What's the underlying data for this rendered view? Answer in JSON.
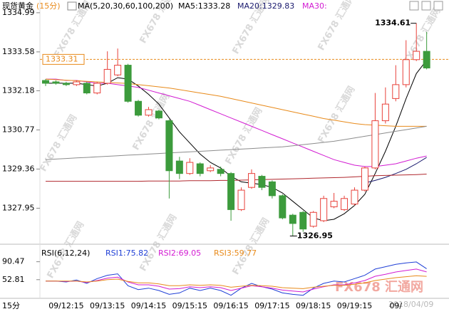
{
  "header": {
    "title": "现货黄金",
    "period": "(15分)",
    "ma_label": "MA(5,20,30,60,100,200)",
    "ma5": "MA5:1333.28",
    "ma20": "MA20:1329.83",
    "ma30": "MA30:"
  },
  "rsi_header": {
    "label": "RSI(6,12,24)",
    "rsi1": "RSI1:75.82",
    "rsi2": "RSI2:69.05",
    "rsi3": "RSI3:59.77"
  },
  "footer": {
    "period": "15分",
    "date": "2018/04/09",
    "watermark": "FX678 汇通网"
  },
  "chart_data": [
    {
      "type": "candlestick",
      "up_color": "#e8413a",
      "down_color": "#3c9b3c",
      "categories": [
        null,
        null,
        "09/12:15",
        null,
        null,
        null,
        "09/13:15",
        null,
        null,
        null,
        "09/14:15",
        null,
        null,
        null,
        "09/15:15",
        null,
        null,
        null,
        "09/16:15",
        null,
        null,
        null,
        "09/17:15",
        null,
        null,
        null,
        "09/18:15",
        null,
        null,
        null,
        "09/19:15",
        null,
        null,
        null,
        "09/",
        null,
        null,
        null
      ],
      "open": [
        1332.55,
        1332.5,
        1332.45,
        1332.4,
        1332.45,
        1332.1,
        1332.45,
        1332.75,
        1333.1,
        1331.8,
        1331.3,
        1331.45,
        1331.1,
        1329.65,
        1329.2,
        1329.55,
        1329.3,
        1329.35,
        1329.2,
        1327.9,
        1328.7,
        1329.1,
        1328.9,
        1328.4,
        1327.7,
        1327.8,
        1327.3,
        1327.5,
        1328.0,
        1327.9,
        1328.1,
        1328.6,
        1329.4,
        1331.1,
        1331.9,
        1332.4,
        1333.3,
        1333.6
      ],
      "close": [
        1332.45,
        1332.45,
        1332.4,
        1332.5,
        1332.1,
        1332.45,
        1332.95,
        1333.1,
        1331.8,
        1331.3,
        1331.5,
        1331.2,
        1329.3,
        1329.2,
        1329.6,
        1329.2,
        1329.4,
        1329.2,
        1327.9,
        1328.6,
        1329.2,
        1328.7,
        1328.4,
        1327.6,
        1327.4,
        1327.2,
        1327.8,
        1328.3,
        1328.2,
        1328.3,
        1328.6,
        1329.4,
        1331.1,
        1331.7,
        1332.4,
        1333.3,
        1333.6,
        1333.0
      ],
      "high": [
        1332.6,
        1332.55,
        1332.5,
        1332.55,
        1332.5,
        1332.5,
        1333.6,
        1333.7,
        1333.15,
        1331.85,
        1331.6,
        1331.5,
        1331.15,
        1329.8,
        1329.75,
        1329.6,
        1329.5,
        1329.45,
        1329.25,
        1328.7,
        1329.35,
        1329.15,
        1328.95,
        1328.45,
        1327.75,
        1327.85,
        1327.85,
        1328.4,
        1328.5,
        1328.4,
        1328.7,
        1329.45,
        1332.1,
        1332.3,
        1333.1,
        1334.0,
        1334.61,
        1334.3
      ],
      "low": [
        1332.35,
        1332.4,
        1332.35,
        1332.35,
        1332.05,
        1332.05,
        1332.4,
        1332.7,
        1331.75,
        1331.25,
        1331.25,
        1331.15,
        1328.3,
        1329.0,
        1329.15,
        1329.1,
        1329.25,
        1329.1,
        1327.5,
        1327.85,
        1328.65,
        1328.6,
        1328.3,
        1327.55,
        1326.95,
        1327.1,
        1327.25,
        1327.45,
        1327.95,
        1327.85,
        1328.05,
        1328.55,
        1329.35,
        1331.0,
        1331.8,
        1332.3,
        1333.25,
        1332.95
      ],
      "lines": [
        {
          "color": "#000000",
          "values": [
            1332.45,
            1332.45,
            1332.45,
            1332.45,
            1332.4,
            1332.35,
            1332.45,
            1332.65,
            1332.6,
            1332.35,
            1332.05,
            1331.7,
            1331.2,
            1330.7,
            1330.3,
            1329.9,
            1329.6,
            1329.4,
            1329.1,
            1328.9,
            1328.85,
            1328.8,
            1328.7,
            1328.5,
            1328.2,
            1327.9,
            1327.6,
            1327.5,
            1327.55,
            1327.75,
            1328.05,
            1328.45,
            1329.2,
            1330.0,
            1330.9,
            1331.9,
            1332.8,
            1333.28
          ]
        },
        {
          "color": "#d21bd2",
          "values": [
            1332.6,
            1332.6,
            1332.55,
            1332.55,
            1332.5,
            1332.45,
            1332.45,
            1332.4,
            1332.35,
            1332.3,
            1332.2,
            1332.1,
            1332.0,
            1331.9,
            1331.8,
            1331.65,
            1331.5,
            1331.35,
            1331.2,
            1331.05,
            1330.9,
            1330.75,
            1330.6,
            1330.45,
            1330.3,
            1330.15,
            1330.0,
            1329.85,
            1329.7,
            1329.6,
            1329.5,
            1329.45,
            1329.45,
            1329.5,
            1329.55,
            1329.65,
            1329.75,
            1329.83
          ]
        },
        {
          "color": "#e88a1a",
          "values": [
            1332.6,
            1332.58,
            1332.56,
            1332.54,
            1332.52,
            1332.5,
            1332.48,
            1332.46,
            1332.44,
            1332.4,
            1332.36,
            1332.32,
            1332.28,
            1332.22,
            1332.16,
            1332.1,
            1332.04,
            1331.98,
            1331.9,
            1331.82,
            1331.74,
            1331.66,
            1331.58,
            1331.5,
            1331.42,
            1331.34,
            1331.26,
            1331.18,
            1331.12,
            1331.06,
            1331.0,
            1330.96,
            1330.94,
            1330.92,
            1330.9,
            1330.9,
            1330.9,
            1330.9
          ]
        },
        {
          "color": "#8c8c8c",
          "values": [
            1329.7,
            1329.72,
            1329.74,
            1329.76,
            1329.78,
            1329.8,
            1329.82,
            1329.84,
            1329.86,
            1329.88,
            1329.9,
            1329.92,
            1329.94,
            1329.96,
            1329.98,
            1330.0,
            1330.02,
            1330.04,
            1330.06,
            1330.08,
            1330.1,
            1330.12,
            1330.14,
            1330.16,
            1330.2,
            1330.24,
            1330.28,
            1330.32,
            1330.36,
            1330.42,
            1330.48,
            1330.54,
            1330.6,
            1330.66,
            1330.72,
            1330.78,
            1330.84,
            1330.9
          ]
        },
        {
          "color": "#1a1a6e",
          "values": [
            null,
            null,
            null,
            null,
            null,
            null,
            null,
            null,
            null,
            null,
            null,
            null,
            null,
            null,
            null,
            null,
            null,
            null,
            null,
            null,
            null,
            null,
            null,
            null,
            null,
            null,
            null,
            null,
            null,
            null,
            null,
            1328.86,
            1328.95,
            1329.06,
            1329.2,
            1329.35,
            1329.55,
            1329.78
          ]
        },
        {
          "color": "#b0282e",
          "values": [
            1328.92,
            1328.92,
            1328.92,
            1328.92,
            1328.92,
            1328.92,
            1328.92,
            1328.92,
            1328.92,
            1328.92,
            1328.93,
            1328.93,
            1328.93,
            1328.93,
            1328.94,
            1328.94,
            1328.94,
            1328.95,
            1328.95,
            1328.96,
            1328.97,
            1328.98,
            1328.99,
            1329.0,
            1329.01,
            1329.02,
            1329.03,
            1329.04,
            1329.05,
            1329.06,
            1329.08,
            1329.1,
            1329.12,
            1329.13,
            1329.14,
            1329.15,
            1329.16,
            1329.18
          ]
        }
      ],
      "last_price": 1333.31,
      "last_price_color": "#e88a1a",
      "high_annotation": 1334.61,
      "low_annotation": 1326.95,
      "ylim": [
        1326.73,
        1335.32
      ],
      "yticks": [
        1334.99,
        1333.58,
        1332.18,
        1330.77,
        1329.36,
        1327.95
      ]
    },
    {
      "type": "line",
      "series": [
        {
          "color": "#1f3fd6",
          "values": [
            50,
            50,
            48,
            52,
            45,
            55,
            62,
            65,
            40,
            32,
            35,
            30,
            22,
            25,
            35,
            30,
            35,
            30,
            20,
            35,
            45,
            38,
            33,
            25,
            22,
            20,
            35,
            45,
            50,
            48,
            55,
            62,
            75,
            80,
            85,
            88,
            90,
            75.82
          ]
        },
        {
          "color": "#d21bd2",
          "values": [
            50,
            50,
            49,
            50,
            47,
            51,
            56,
            58,
            48,
            42,
            42,
            39,
            33,
            34,
            38,
            36,
            38,
            36,
            30,
            35,
            40,
            38,
            35,
            31,
            29,
            27,
            33,
            38,
            42,
            42,
            46,
            51,
            60,
            64,
            69,
            72,
            75,
            69.05
          ]
        },
        {
          "color": "#e88a1a",
          "values": [
            50,
            50,
            50,
            50,
            48,
            50,
            53,
            54,
            49,
            46,
            46,
            44,
            40,
            40,
            42,
            41,
            42,
            41,
            37,
            39,
            41,
            40,
            39,
            36,
            35,
            34,
            37,
            39,
            41,
            41,
            43,
            46,
            51,
            54,
            57,
            59,
            61,
            59.77
          ]
        }
      ],
      "ylim": [
        15.1,
        109.3
      ],
      "yticks": [
        90.47,
        52.81
      ]
    }
  ]
}
